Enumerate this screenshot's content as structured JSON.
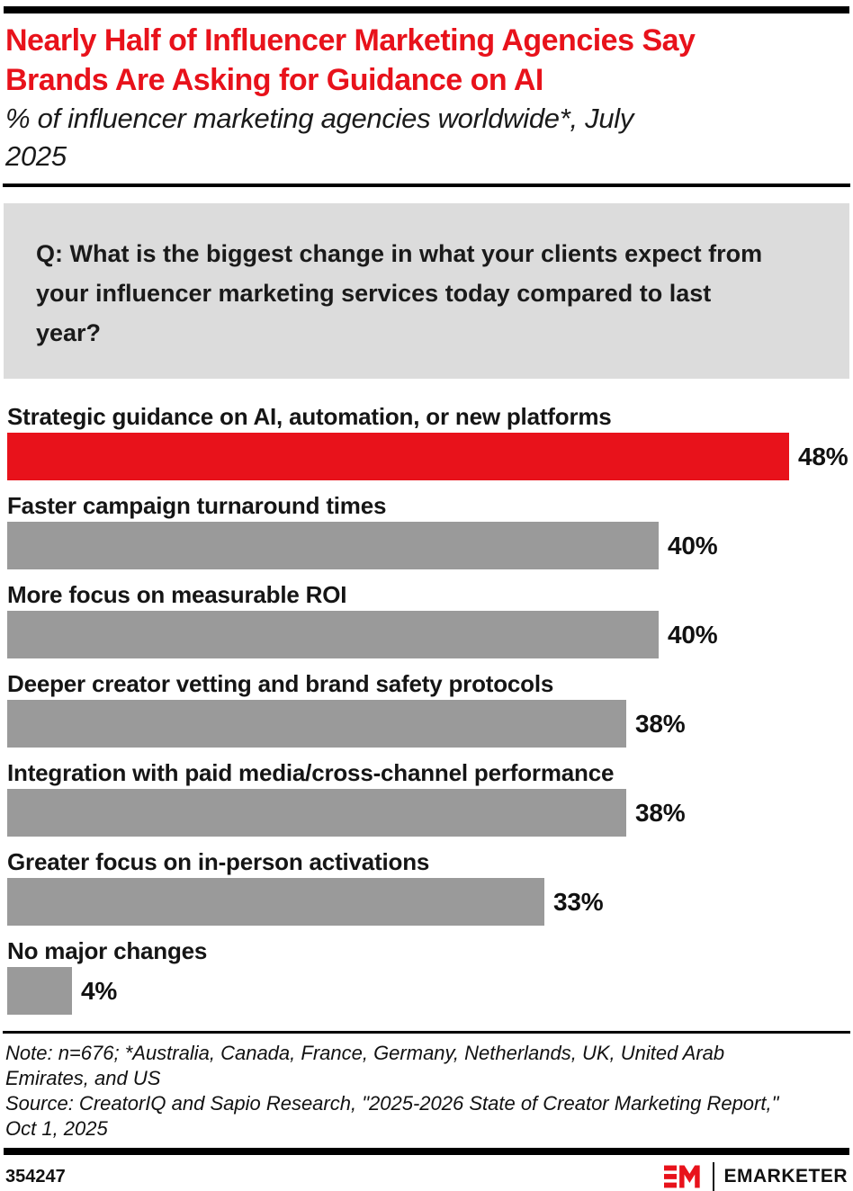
{
  "header": {
    "title_lines": [
      "Nearly Half of Influencer Marketing Agencies Say",
      "Brands Are Asking for Guidance on AI"
    ],
    "subtitle_lines": [
      "% of influencer marketing agencies worldwide*, July",
      "2025"
    ]
  },
  "question": {
    "lines": [
      "Q: What is the biggest change in what your clients expect from",
      "your influencer marketing services today compared to last",
      "year?"
    ]
  },
  "chart_data": {
    "type": "bar",
    "orientation": "horizontal",
    "title": "Nearly Half of Influencer Marketing Agencies Say Brands Are Asking for Guidance on AI",
    "subtitle": "% of influencer marketing agencies worldwide*, July 2025",
    "categories": [
      "Strategic guidance on AI, automation, or new platforms",
      "Faster campaign turnaround times",
      "More focus on measurable ROI",
      "Deeper creator vetting and brand safety protocols",
      "Integration with paid media/cross-channel performance",
      "Greater focus on in-person activations",
      "No major changes"
    ],
    "values": [
      48,
      40,
      40,
      38,
      38,
      33,
      4
    ],
    "value_labels": [
      "48%",
      "40%",
      "40%",
      "38%",
      "38%",
      "33%",
      "4%"
    ],
    "unit": "%",
    "xlim": [
      0,
      52
    ],
    "grid": false,
    "legend": "none",
    "value_label_position": "right-of-bar",
    "highlight_index": 0,
    "highlight_color": "#E8121B",
    "bar_color": "#9A9A9A"
  },
  "footnote": {
    "lines": [
      "Note: n=676; *Australia, Canada, France, Germany, Netherlands, UK, United Arab",
      "Emirates, and US",
      "Source: CreatorIQ and Sapio Research, \"2025-2026 State of Creator Marketing Report,\"",
      "Oct 1, 2025"
    ]
  },
  "footer": {
    "chart_id": "354247",
    "brand_name": "EMARKETER"
  },
  "colors": {
    "accent_red": "#E8121B",
    "bar_gray": "#9A9A9A",
    "question_bg": "#DCDCDC",
    "rule_black": "#000000",
    "text": "#111111"
  }
}
